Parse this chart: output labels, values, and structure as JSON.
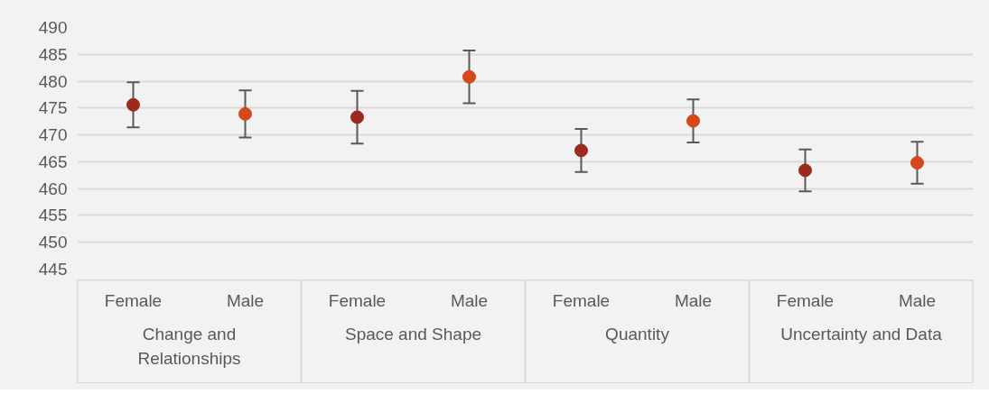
{
  "chart_data": {
    "type": "scatter",
    "categories": [
      "Female",
      "Male",
      "Female",
      "Male",
      "Female",
      "Male",
      "Female",
      "Male"
    ],
    "values": [
      475.6,
      473.9,
      473.3,
      480.8,
      467.1,
      472.6,
      463.4,
      464.8
    ],
    "errors": [
      4.2,
      4.4,
      4.9,
      4.9,
      4.0,
      4.0,
      3.9,
      3.9
    ],
    "colors": [
      "#9c2a1e",
      "#d4481a",
      "#9c2a1e",
      "#d4481a",
      "#9c2a1e",
      "#d4481a",
      "#9c2a1e",
      "#d4481a"
    ],
    "annotations": [
      "Change and Relationships",
      "Space and Shape",
      "Quantity",
      "Uncertainty and Data"
    ],
    "ylim": [
      445,
      490
    ],
    "yticks": [
      445,
      450,
      455,
      460,
      465,
      470,
      475,
      480,
      485,
      490
    ],
    "grid": "y",
    "marker": "circle"
  }
}
